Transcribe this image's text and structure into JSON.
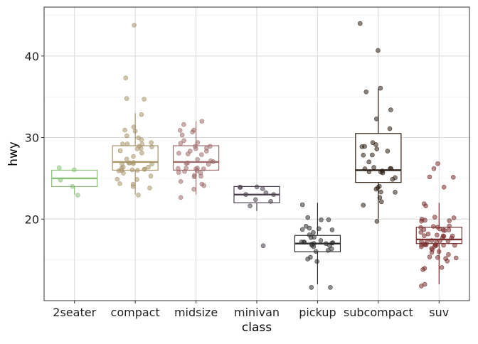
{
  "chart_data": {
    "type": "box",
    "title": "",
    "xlabel": "class",
    "ylabel": "hwy",
    "ylim": [
      10,
      46
    ],
    "yticks": [
      20,
      30,
      40
    ],
    "grid": true,
    "legend": "none",
    "categories": [
      "2seater",
      "compact",
      "midsize",
      "minivan",
      "pickup",
      "subcompact",
      "suv"
    ],
    "colors": [
      "#8BBF7A",
      "#A8966A",
      "#9E6B6B",
      "#4A3F4E",
      "#2D2D2D",
      "#2B1E12",
      "#7A2E2E"
    ],
    "boxes": [
      {
        "q1": 24,
        "median": 25,
        "q3": 26,
        "whisker_low": 23,
        "whisker_high": 26
      },
      {
        "q1": 26,
        "median": 27,
        "q3": 29,
        "whisker_low": 23,
        "whisker_high": 33
      },
      {
        "q1": 26,
        "median": 27,
        "q3": 29,
        "whisker_low": 23,
        "whisker_high": 32
      },
      {
        "q1": 22,
        "median": 23,
        "q3": 24,
        "whisker_low": 21,
        "whisker_high": 24
      },
      {
        "q1": 16,
        "median": 17,
        "q3": 18,
        "whisker_low": 12,
        "whisker_high": 22
      },
      {
        "q1": 24.5,
        "median": 26,
        "q3": 30.5,
        "whisker_low": 20,
        "whisker_high": 36
      },
      {
        "q1": 17,
        "median": 17.5,
        "q3": 19,
        "whisker_low": 12,
        "whisker_high": 22
      }
    ],
    "points": [
      [
        26,
        25,
        24,
        26,
        23
      ],
      [
        29,
        29,
        31,
        30,
        26,
        26,
        29,
        26,
        27,
        26,
        33,
        26,
        27,
        25,
        29,
        27,
        24,
        37,
        44,
        29,
        26,
        27,
        28,
        26,
        28,
        29,
        24,
        24,
        27,
        35,
        35,
        30,
        26,
        25,
        26,
        29,
        27,
        31,
        29,
        27,
        25,
        23,
        28,
        31,
        30,
        26,
        24
      ],
      [
        26,
        26,
        24,
        26,
        30,
        25,
        26,
        27,
        29,
        28,
        31,
        27,
        29,
        32,
        26,
        31,
        29,
        26,
        25,
        28,
        24,
        27,
        29,
        23,
        26,
        28,
        31,
        27,
        26,
        30,
        32,
        27,
        25,
        29,
        26,
        28,
        29,
        25,
        24,
        27,
        28
      ],
      [
        23,
        24,
        22,
        24,
        22,
        24,
        17,
        23,
        22,
        23,
        24
      ],
      [
        19,
        20,
        15,
        20,
        17,
        17,
        17,
        19,
        15,
        17,
        12,
        17,
        16,
        19,
        18,
        17,
        17,
        12,
        19,
        17,
        17,
        15,
        16,
        18,
        20,
        22,
        17,
        17,
        19,
        18,
        17,
        16,
        18
      ],
      [
        26,
        25,
        28,
        36,
        29,
        26,
        24,
        26,
        22,
        26,
        28,
        32,
        24,
        25,
        26,
        29,
        29,
        31,
        23,
        20,
        24,
        27,
        26,
        22,
        41,
        44,
        29,
        26,
        28,
        29,
        23,
        36,
        33,
        26,
        23
      ],
      [
        17,
        19,
        18,
        17,
        18,
        15,
        12,
        17,
        14,
        16,
        17,
        22,
        19,
        17,
        20,
        17,
        16,
        19,
        25,
        26,
        27,
        20,
        18,
        15,
        12,
        17,
        19,
        18,
        14,
        16,
        17,
        19,
        15,
        20,
        18,
        17,
        17,
        19,
        15,
        17,
        16,
        20,
        18,
        20,
        17,
        14,
        19,
        18,
        17,
        19,
        18,
        17,
        15,
        25,
        24,
        18,
        22,
        17,
        19,
        20,
        16,
        17
      ]
    ]
  }
}
